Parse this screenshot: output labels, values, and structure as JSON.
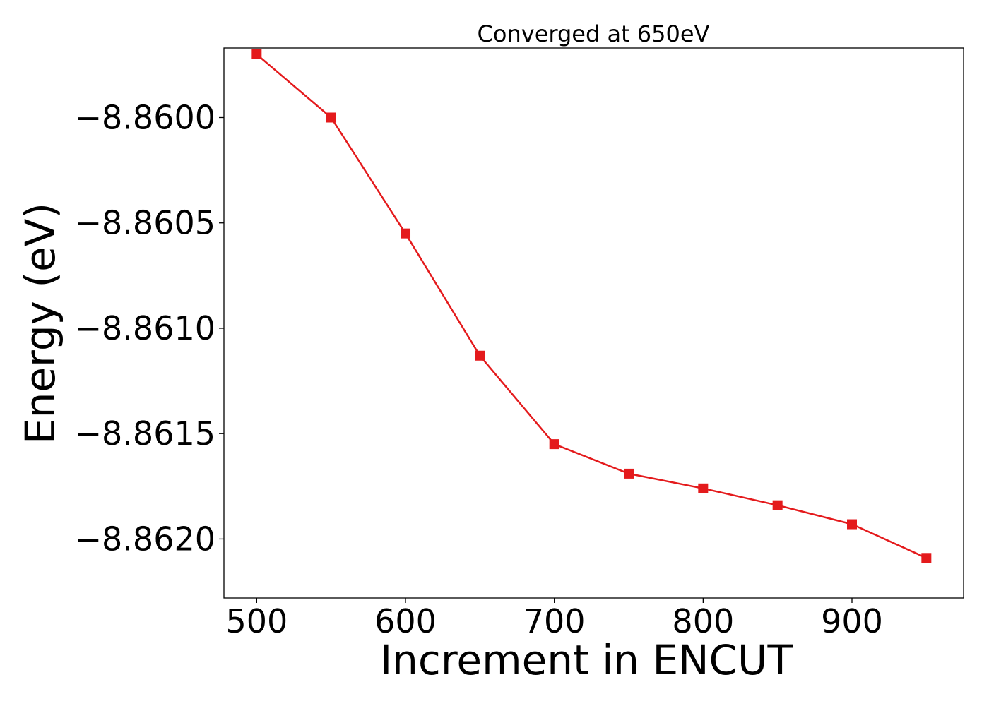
{
  "chart_data": {
    "type": "line",
    "title": "Converged at 650eV",
    "xlabel": "Increment in ENCUT",
    "ylabel": "Energy (eV)",
    "xlim": [
      478,
      975
    ],
    "ylim": [
      -8.86228,
      -8.85967
    ],
    "x_ticks": [
      500,
      600,
      700,
      800,
      900
    ],
    "x_tick_labels": [
      "500",
      "600",
      "700",
      "800",
      "900"
    ],
    "y_ticks": [
      -8.86,
      -8.8605,
      -8.861,
      -8.8615,
      -8.862
    ],
    "y_tick_labels": [
      "−8.8600",
      "−8.8605",
      "−8.8610",
      "−8.8615",
      "−8.8620"
    ],
    "grid": false,
    "series": [
      {
        "x": [
          500,
          550,
          600,
          650,
          700,
          750,
          800,
          850,
          900,
          950
        ],
        "y": [
          -8.8597,
          -8.86,
          -8.86055,
          -8.86113,
          -8.86155,
          -8.86169,
          -8.86176,
          -8.86184,
          -8.86193,
          -8.86209
        ],
        "color": "#e41a1c",
        "marker": "square"
      }
    ]
  }
}
